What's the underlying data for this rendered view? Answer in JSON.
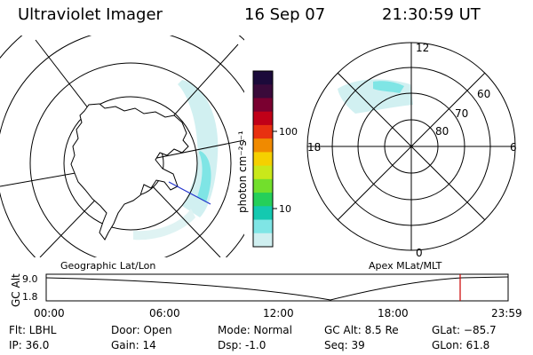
{
  "header": {
    "instrument": "Ultraviolet Imager",
    "date": "16 Sep 07",
    "time": "21:30:59 UT"
  },
  "left_panel": {
    "caption": "Geographic Lat/Lon"
  },
  "right_panel": {
    "caption": "Apex MLat/MLT",
    "mlt_labels": {
      "top": "12",
      "bottom": "0",
      "left": "18",
      "right": "6"
    },
    "mlat_labels": [
      "60",
      "70",
      "80"
    ]
  },
  "colorbar": {
    "label": "photon cm⁻²s⁻¹",
    "ticks": [
      "100",
      "10"
    ],
    "colors": [
      "#1b0a3a",
      "#3a0a3a",
      "#7a0030",
      "#c00018",
      "#e83010",
      "#f08a00",
      "#f5d000",
      "#c9e81a",
      "#72df2c",
      "#25cf5a",
      "#14c9b0",
      "#7fe5e5",
      "#cfeff0"
    ]
  },
  "timeline": {
    "axis_label": "GC Alt",
    "y_ticks": [
      "9.0",
      "1.8"
    ],
    "x_ticks": [
      "00:00",
      "06:00",
      "12:00",
      "18:00",
      "23:59"
    ],
    "marker_color": "#cc0000",
    "marker_time": "21:30:59"
  },
  "info": {
    "flt": "Flt: LBHL",
    "ip": "IP: 36.0",
    "door": "Door: Open",
    "gain": "Gain: 14",
    "mode": "Mode: Normal",
    "dsp": "Dsp:    -1.0",
    "gc_alt": "GC Alt: 8.5 Re",
    "seq": "Seq: 39",
    "glat": "GLat: −85.7",
    "glon": "GLon:  61.8"
  }
}
